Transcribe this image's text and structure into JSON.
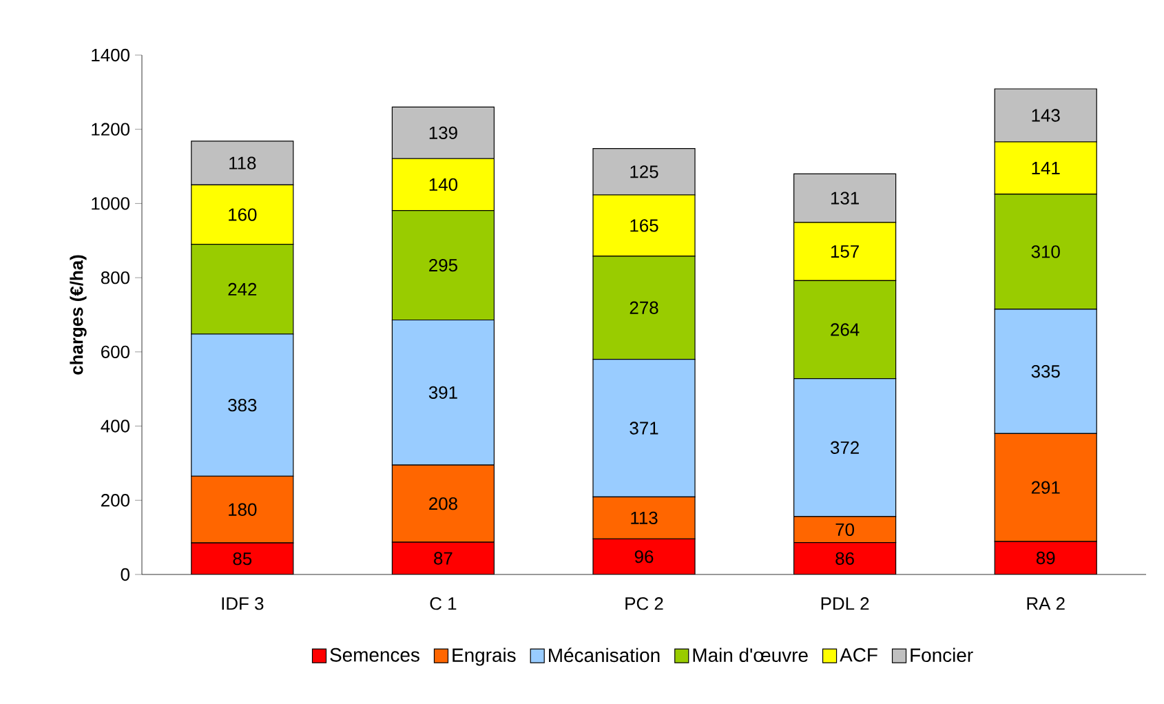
{
  "chart_data": {
    "type": "bar",
    "stacked": true,
    "ylabel": "charges (€/ha)",
    "categories": [
      "IDF 3",
      "C 1",
      "PC 2",
      "PDL 2",
      "RA 2"
    ],
    "series": [
      {
        "name": "Semences",
        "color": "#ff0000",
        "values": [
          85,
          87,
          96,
          86,
          89
        ]
      },
      {
        "name": "Engrais",
        "color": "#ff6600",
        "values": [
          180,
          208,
          113,
          70,
          291
        ]
      },
      {
        "name": "Mécanisation",
        "color": "#99ccff",
        "values": [
          383,
          391,
          371,
          372,
          335
        ]
      },
      {
        "name": "Main d'œuvre",
        "color": "#99cc00",
        "values": [
          242,
          295,
          278,
          264,
          310
        ]
      },
      {
        "name": "ACF",
        "color": "#ffff00",
        "values": [
          160,
          140,
          165,
          157,
          141
        ]
      },
      {
        "name": "Foncier",
        "color": "#c0c0c0",
        "values": [
          118,
          139,
          125,
          131,
          143
        ]
      }
    ],
    "ylim": [
      0,
      1400
    ],
    "yticks": [
      0,
      200,
      400,
      600,
      800,
      1000,
      1200,
      1400
    ],
    "data_labels": true,
    "legend": "bottom",
    "grid": false
  }
}
